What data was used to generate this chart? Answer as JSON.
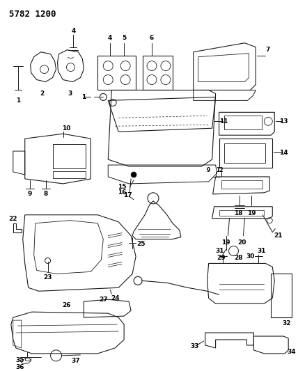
{
  "title": "5782 1200",
  "bg_color": "#ffffff",
  "line_color": "#1a1a1a",
  "title_fontsize": 9,
  "label_fontsize": 6.5,
  "figsize": [
    4.28,
    5.33
  ],
  "dpi": 100,
  "ax_bg": "#ffffff"
}
